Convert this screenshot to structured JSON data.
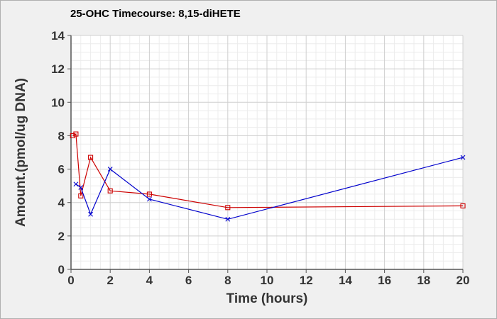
{
  "chart_data": {
    "type": "line",
    "title": "25-OHC Timecourse: 8,15-diHETE",
    "xlabel": "Time (hours)",
    "ylabel": "Amount.(pmol/ug DNA)",
    "xlim": [
      0,
      20
    ],
    "ylim": [
      0,
      14
    ],
    "x_ticks": [
      0,
      2,
      4,
      6,
      8,
      10,
      12,
      14,
      16,
      18,
      20
    ],
    "y_ticks": [
      0,
      2,
      4,
      6,
      8,
      10,
      12,
      14
    ],
    "grid": true,
    "legend": "none",
    "series": [
      {
        "color": "#cc0000",
        "marker": "square",
        "points": [
          {
            "x": 0.083,
            "y": 8.0
          },
          {
            "x": 0.25,
            "y": 8.1
          },
          {
            "x": 0.5,
            "y": 4.4
          },
          {
            "x": 1,
            "y": 6.7
          },
          {
            "x": 2,
            "y": 4.7
          },
          {
            "x": 4,
            "y": 4.5
          },
          {
            "x": 8,
            "y": 3.7
          },
          {
            "x": 20,
            "y": 3.8
          }
        ]
      },
      {
        "color": "#0000cc",
        "marker": "x",
        "points": [
          {
            "x": 0.25,
            "y": 5.1
          },
          {
            "x": 0.5,
            "y": 4.9
          },
          {
            "x": 1,
            "y": 3.3
          },
          {
            "x": 2,
            "y": 6.0
          },
          {
            "x": 4,
            "y": 4.2
          },
          {
            "x": 8,
            "y": 3.0
          },
          {
            "x": 20,
            "y": 6.7
          }
        ]
      }
    ]
  }
}
